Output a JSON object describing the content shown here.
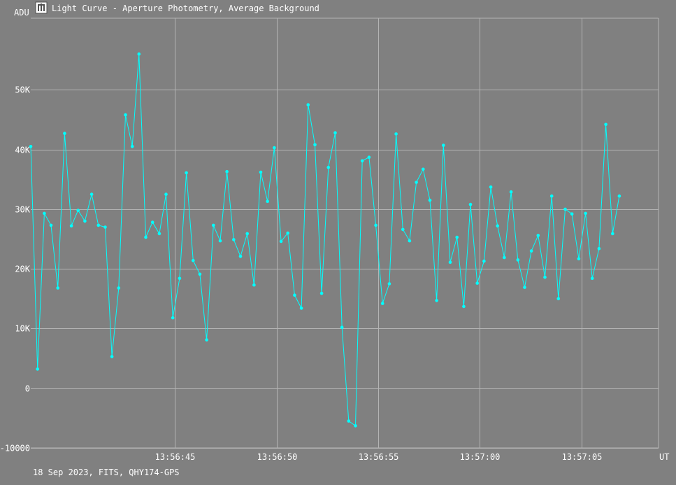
{
  "window": {
    "title": "Light Curve - Aperture Photometry, Average Background",
    "icon": "light-curve-app-icon"
  },
  "footer": {
    "info": "18 Sep 2023, FITS, QHY174-GPS"
  },
  "colors": {
    "background": "#808080",
    "grid": "#b4b4b4",
    "series": "#00ffff",
    "text": "#ffffff"
  },
  "chart_data": {
    "type": "line",
    "ylabel": "ADU",
    "xlabel": "UT",
    "grid": true,
    "ylim": [
      -10000,
      62000
    ],
    "y_ticks": [
      {
        "value": -10000,
        "label": "-10000"
      },
      {
        "value": 0,
        "label": "0"
      },
      {
        "value": 10000,
        "label": "10K"
      },
      {
        "value": 20000,
        "label": "20K"
      },
      {
        "value": 30000,
        "label": "30K"
      },
      {
        "value": 40000,
        "label": "40K"
      },
      {
        "value": 50000,
        "label": "50K"
      }
    ],
    "x_range": [
      "13:56:37.9",
      "13:57:08.8"
    ],
    "x_ticks": [
      "13:56:45",
      "13:56:50",
      "13:56:55",
      "13:57:00",
      "13:57:05"
    ],
    "x_start": "13:56:37.9",
    "x_step_seconds": 0.333,
    "series": [
      {
        "values": [
          40500,
          3200,
          29300,
          27300,
          16800,
          42700,
          27200,
          29800,
          28000,
          32500,
          27300,
          27000,
          5300,
          16800,
          45800,
          40500,
          56000,
          25300,
          27800,
          25900,
          32500,
          11800,
          18400,
          36100,
          21400,
          19100,
          8100,
          27300,
          24700,
          36300,
          24900,
          22100,
          25900,
          17300,
          36200,
          31300,
          40300,
          24600,
          26000,
          15600,
          13400,
          47500,
          40800,
          15900,
          37000,
          42800,
          10200,
          -5500,
          -6300,
          38100,
          38700,
          27300,
          14200,
          17500,
          42600,
          26600,
          24700,
          34500,
          36700,
          31500,
          14700,
          40700,
          21100,
          25300,
          13700,
          30800,
          17600,
          21300,
          33700,
          27200,
          21900,
          32900,
          21500,
          16900,
          23000,
          25600,
          18600,
          32200,
          15000,
          30000,
          29200,
          21700,
          29300,
          18400,
          23400,
          44200,
          25900,
          32200
        ]
      }
    ]
  }
}
